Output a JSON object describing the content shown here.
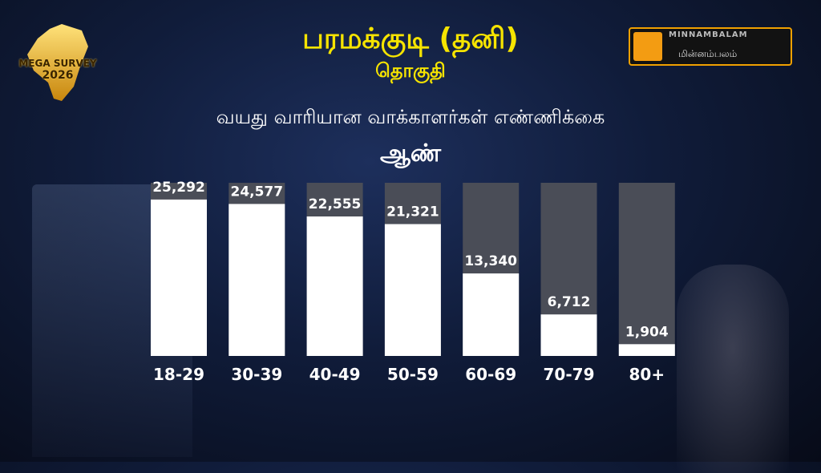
{
  "header": {
    "title": "பரமக்குடி (தனி)",
    "subtitle_line": "தொகுதி",
    "chart_heading": "வயது வாரியான வாக்காளர்கள் எண்ணிக்கை",
    "gender_label": "ஆண்"
  },
  "logo": {
    "line1": "MEGA SURVEY",
    "line2": "2026"
  },
  "brand": {
    "name_en": "MINNAMBALAM",
    "name_ta": "மின்னம்பலம்",
    "accent": "#f39c12"
  },
  "colors": {
    "title": "#f6e400",
    "bar_fill": "#ffffff",
    "bar_track": "#4a4d57",
    "text": "#ffffff"
  },
  "chart_data": {
    "type": "bar",
    "categories": [
      "18-29",
      "30-39",
      "40-49",
      "50-59",
      "60-69",
      "70-79",
      "80+"
    ],
    "values": [
      25292,
      24577,
      22555,
      21321,
      13340,
      6712,
      1904
    ],
    "value_labels": [
      "25,292",
      "24,577",
      "22,555",
      "21,321",
      "13,340",
      "6,712",
      "1,904"
    ],
    "title": "வயது வாரியான வாக்காளர்கள் எண்ணிக்கை",
    "xlabel": "",
    "ylabel": "",
    "ylim": [
      0,
      28000
    ],
    "grid": false,
    "legend": "none"
  }
}
